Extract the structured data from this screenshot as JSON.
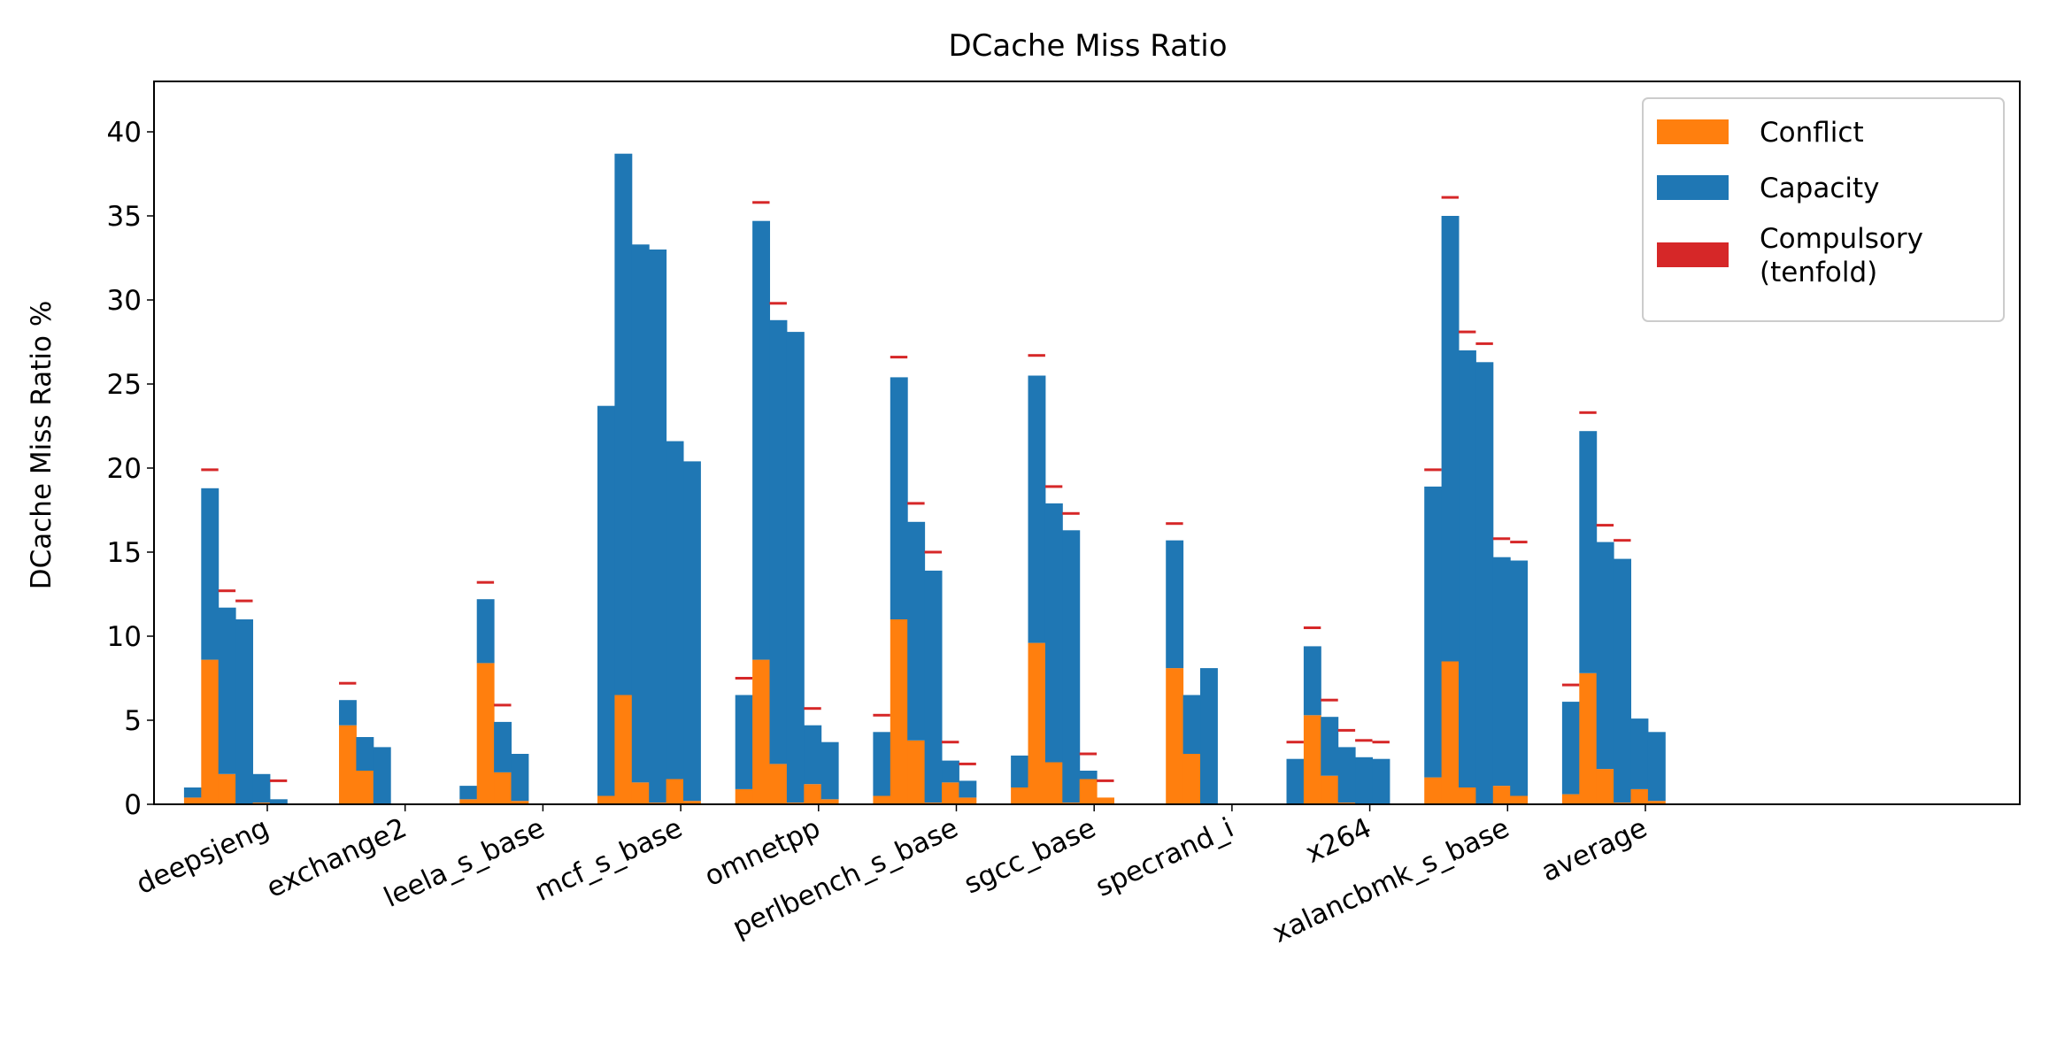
{
  "chart_data": {
    "type": "bar",
    "title": "DCache Miss Ratio",
    "ylabel": "DCache Miss Ratio %",
    "xlabel": "",
    "ylim": [
      0,
      43
    ],
    "yticks": [
      0,
      5,
      10,
      15,
      20,
      25,
      30,
      35,
      40
    ],
    "stacked": true,
    "bars_per_group": 6,
    "categories": [
      "deepsjeng",
      "exchange2",
      "leela_s_base",
      "mcf_s_base",
      "omnetpp",
      "perlbench_s_base",
      "sgcc_base",
      "specrand_i",
      "x264",
      "xalancbmk_s_base",
      "average"
    ],
    "legend_position": "top-right",
    "series": [
      {
        "name": "Conflict",
        "color": "#ff7f0e",
        "values": [
          [
            0.4,
            8.6,
            1.8,
            0.0,
            0.1,
            0.05
          ],
          [
            0.0,
            4.7,
            2.0,
            0.0,
            0.0,
            0.0
          ],
          [
            0.3,
            8.4,
            1.9,
            0.2,
            0.0,
            0.0
          ],
          [
            0.5,
            6.5,
            1.3,
            0.1,
            1.5,
            0.2
          ],
          [
            0.9,
            8.6,
            2.4,
            0.1,
            1.2,
            0.3
          ],
          [
            0.5,
            11.0,
            3.8,
            0.1,
            1.3,
            0.4
          ],
          [
            1.0,
            9.6,
            2.5,
            0.1,
            1.5,
            0.4
          ],
          [
            0.0,
            8.1,
            3.0,
            0.0,
            0.0,
            0.0
          ],
          [
            0.0,
            5.3,
            1.7,
            0.1,
            0.0,
            0.0
          ],
          [
            1.6,
            8.5,
            1.0,
            0.0,
            1.1,
            0.5
          ],
          [
            0.6,
            7.8,
            2.1,
            0.1,
            0.9,
            0.2
          ]
        ]
      },
      {
        "name": "Capacity",
        "color": "#1f77b4",
        "values": [
          [
            0.6,
            10.2,
            9.9,
            11.0,
            1.7,
            0.25
          ],
          [
            0.0,
            1.5,
            2.0,
            3.4,
            0.0,
            0.0
          ],
          [
            0.8,
            3.8,
            3.0,
            2.8,
            0.0,
            0.0
          ],
          [
            23.2,
            32.2,
            32.0,
            32.9,
            20.1,
            20.2
          ],
          [
            5.6,
            26.1,
            26.4,
            28.0,
            3.5,
            3.4
          ],
          [
            3.8,
            14.4,
            13.0,
            13.8,
            1.3,
            1.0
          ],
          [
            1.9,
            15.9,
            15.4,
            16.2,
            0.5,
            0.0
          ],
          [
            0.0,
            7.6,
            3.5,
            8.1,
            0.0,
            0.0
          ],
          [
            2.7,
            4.1,
            3.5,
            3.3,
            2.8,
            2.7
          ],
          [
            17.3,
            26.5,
            26.0,
            26.3,
            13.6,
            14.0
          ],
          [
            5.5,
            14.4,
            13.5,
            14.5,
            4.2,
            4.1
          ]
        ]
      },
      {
        "name": "Compulsory\n (tenfold)",
        "color": "#d62728",
        "values": [
          [
            0.0,
            19.9,
            12.7,
            12.1,
            0.0,
            1.4
          ],
          [
            0.0,
            7.2,
            0.0,
            0.0,
            0.0,
            0.0
          ],
          [
            0.0,
            13.2,
            5.9,
            0.0,
            0.0,
            0.0
          ],
          [
            0.0,
            0.0,
            0.0,
            0.0,
            0.0,
            0.0
          ],
          [
            7.5,
            35.8,
            29.8,
            0.0,
            5.7,
            0.0
          ],
          [
            5.3,
            26.6,
            17.9,
            15.0,
            3.7,
            2.4
          ],
          [
            0.0,
            26.7,
            18.9,
            17.3,
            3.0,
            1.4
          ],
          [
            0.0,
            16.7,
            0.0,
            0.0,
            0.0,
            0.0
          ],
          [
            3.7,
            10.5,
            6.2,
            4.4,
            3.8,
            3.7
          ],
          [
            19.9,
            36.1,
            28.1,
            27.4,
            15.8,
            15.6
          ],
          [
            7.1,
            23.3,
            16.6,
            15.7,
            0.0,
            0.0
          ]
        ]
      }
    ]
  }
}
